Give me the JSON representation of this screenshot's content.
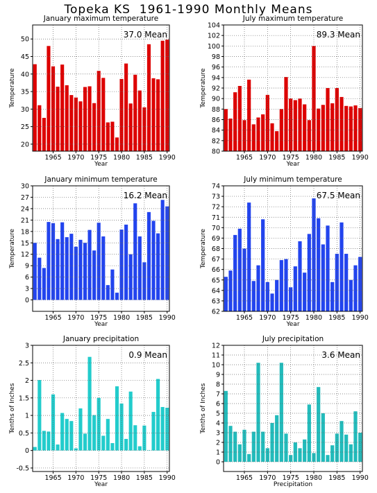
{
  "page_title": "Topeka KS  1961-1990 Monthly Means",
  "chart_data": [
    {
      "type": "bar",
      "title": "January maximum temperature",
      "xlabel": "Year",
      "ylabel": "Temperature",
      "mean_label": "37.0  Mean",
      "color": "#dd0000",
      "xlim": [
        1961,
        1990
      ],
      "ylim": [
        18,
        54
      ],
      "yticks": [
        20,
        25,
        30,
        35,
        40,
        45,
        50
      ],
      "xticks": [
        1965,
        1970,
        1975,
        1980,
        1985,
        1990
      ],
      "grid": true,
      "x": [
        1961,
        1962,
        1963,
        1964,
        1965,
        1966,
        1967,
        1968,
        1969,
        1970,
        1971,
        1972,
        1973,
        1974,
        1975,
        1976,
        1977,
        1978,
        1979,
        1980,
        1981,
        1982,
        1983,
        1984,
        1985,
        1986,
        1987,
        1988,
        1989,
        1990
      ],
      "values": [
        42.8,
        31.1,
        27.5,
        48.0,
        42.2,
        36.4,
        42.7,
        36.8,
        34.0,
        33.3,
        32.2,
        36.3,
        36.5,
        31.7,
        40.9,
        38.9,
        26.2,
        26.4,
        21.9,
        38.6,
        43.0,
        31.6,
        39.8,
        35.3,
        30.5,
        48.5,
        38.8,
        38.5,
        49.5,
        49.8
      ]
    },
    {
      "type": "bar",
      "title": "July maximum temperature",
      "xlabel": "Year",
      "ylabel": "Temperature",
      "mean_label": "89.3  Mean",
      "color": "#dd0000",
      "xlim": [
        1961,
        1990
      ],
      "ylim": [
        80,
        104
      ],
      "yticks": [
        80,
        82,
        84,
        86,
        88,
        90,
        92,
        94,
        96,
        98,
        100,
        102,
        104
      ],
      "xticks": [
        1965,
        1970,
        1975,
        1980,
        1985,
        1990
      ],
      "grid": true,
      "x": [
        1961,
        1962,
        1963,
        1964,
        1965,
        1966,
        1967,
        1968,
        1969,
        1970,
        1971,
        1972,
        1973,
        1974,
        1975,
        1976,
        1977,
        1978,
        1979,
        1980,
        1981,
        1982,
        1983,
        1984,
        1985,
        1986,
        1987,
        1988,
        1989,
        1990
      ],
      "values": [
        88.0,
        86.2,
        91.2,
        92.4,
        85.9,
        93.6,
        85.1,
        86.4,
        87.0,
        90.7,
        85.3,
        83.8,
        88.0,
        94.1,
        90.0,
        89.7,
        90.0,
        88.9,
        85.9,
        100.0,
        88.1,
        88.8,
        92.0,
        89.1,
        92.0,
        90.3,
        88.6,
        88.5,
        88.7,
        88.2
      ]
    },
    {
      "type": "bar",
      "title": "January minimum temperature",
      "xlabel": "Year",
      "ylabel": "Temperature",
      "mean_label": "16.2  Mean",
      "color": "#2244ee",
      "xlim": [
        1961,
        1990
      ],
      "ylim": [
        -3,
        30
      ],
      "yticks": [
        0,
        3,
        6,
        9,
        12,
        15,
        18,
        21,
        24,
        27,
        30
      ],
      "xticks": [
        1965,
        1970,
        1975,
        1980,
        1985,
        1990
      ],
      "grid": true,
      "x": [
        1961,
        1962,
        1963,
        1964,
        1965,
        1966,
        1967,
        1968,
        1969,
        1970,
        1971,
        1972,
        1973,
        1974,
        1975,
        1976,
        1977,
        1978,
        1979,
        1980,
        1981,
        1982,
        1983,
        1984,
        1985,
        1986,
        1987,
        1988,
        1989,
        1990
      ],
      "values": [
        15.0,
        11.1,
        8.4,
        20.5,
        20.2,
        16.0,
        20.4,
        16.5,
        17.4,
        14.0,
        15.8,
        15.0,
        18.4,
        13.0,
        20.3,
        16.7,
        3.9,
        8.0,
        1.9,
        18.5,
        19.8,
        12.0,
        25.4,
        16.7,
        9.9,
        23.1,
        20.8,
        17.5,
        26.3,
        24.6
      ]
    },
    {
      "type": "bar",
      "title": "July minimum temperature",
      "xlabel": "Year",
      "ylabel": "Temperature",
      "mean_label": "67.5  Mean",
      "color": "#2244ee",
      "xlim": [
        1961,
        1990
      ],
      "ylim": [
        62,
        74
      ],
      "yticks": [
        62,
        63,
        64,
        65,
        66,
        67,
        68,
        69,
        70,
        71,
        72,
        73,
        74
      ],
      "xticks": [
        1965,
        1970,
        1975,
        1980,
        1985,
        1990
      ],
      "grid": true,
      "x": [
        1961,
        1962,
        1963,
        1964,
        1965,
        1966,
        1967,
        1968,
        1969,
        1970,
        1971,
        1972,
        1973,
        1974,
        1975,
        1976,
        1977,
        1978,
        1979,
        1980,
        1981,
        1982,
        1983,
        1984,
        1985,
        1986,
        1987,
        1988,
        1989,
        1990
      ],
      "values": [
        65.3,
        65.9,
        69.3,
        69.9,
        68.0,
        72.4,
        64.9,
        66.4,
        70.8,
        64.8,
        63.7,
        65.0,
        66.9,
        67.0,
        64.3,
        66.3,
        68.7,
        65.7,
        69.4,
        72.8,
        70.9,
        68.4,
        70.2,
        64.8,
        67.5,
        70.5,
        67.5,
        65.0,
        66.4,
        67.2
      ]
    },
    {
      "type": "bar",
      "title": "January precipitation",
      "xlabel": "Year",
      "ylabel": "Tenths of Inches",
      "mean_label": "0.9  Mean",
      "color": "#22cccc",
      "xlim": [
        1961,
        1990
      ],
      "ylim": [
        -0.6,
        3
      ],
      "yticks": [
        -0.5,
        0,
        0.5,
        1,
        1.5,
        2,
        2.5,
        3
      ],
      "xticks": [
        1965,
        1970,
        1975,
        1980,
        1985,
        1990
      ],
      "grid": true,
      "x": [
        1961,
        1962,
        1963,
        1964,
        1965,
        1966,
        1967,
        1968,
        1969,
        1970,
        1971,
        1972,
        1973,
        1974,
        1975,
        1976,
        1977,
        1978,
        1979,
        1980,
        1981,
        1982,
        1983,
        1984,
        1985,
        1986,
        1987,
        1988,
        1989,
        1990
      ],
      "values": [
        0.1,
        2.01,
        0.56,
        0.54,
        1.6,
        0.17,
        1.07,
        0.9,
        0.84,
        0.06,
        1.2,
        0.48,
        2.67,
        1.01,
        1.5,
        0.42,
        0.9,
        0.21,
        1.83,
        1.34,
        0.33,
        1.68,
        0.72,
        0.12,
        0.71,
        0.01,
        1.1,
        2.04,
        1.24,
        1.22
      ]
    },
    {
      "type": "bar",
      "title": "July precipitation",
      "xlabel": "Precipitation",
      "ylabel": "Tenths of Inches",
      "mean_label": "3.6  Mean",
      "color": "#22bbbb",
      "xlim": [
        1961,
        1990
      ],
      "ylim": [
        -1,
        12
      ],
      "yticks": [
        0,
        1,
        2,
        3,
        4,
        5,
        6,
        7,
        8,
        9,
        10,
        11,
        12
      ],
      "xticks": [
        1965,
        1970,
        1975,
        1980,
        1985,
        1990
      ],
      "grid": true,
      "x": [
        1961,
        1962,
        1963,
        1964,
        1965,
        1966,
        1967,
        1968,
        1969,
        1970,
        1971,
        1972,
        1973,
        1974,
        1975,
        1976,
        1977,
        1978,
        1979,
        1980,
        1981,
        1982,
        1983,
        1984,
        1985,
        1986,
        1987,
        1988,
        1989,
        1990
      ],
      "values": [
        7.3,
        3.7,
        3.1,
        1.8,
        3.3,
        0.8,
        3.1,
        10.2,
        3.1,
        1.4,
        4.0,
        4.8,
        10.2,
        2.9,
        0.7,
        2.0,
        1.4,
        2.3,
        5.9,
        0.9,
        7.7,
        5.0,
        0.7,
        1.7,
        2.9,
        4.2,
        2.8,
        1.8,
        5.2,
        3.0
      ]
    }
  ]
}
